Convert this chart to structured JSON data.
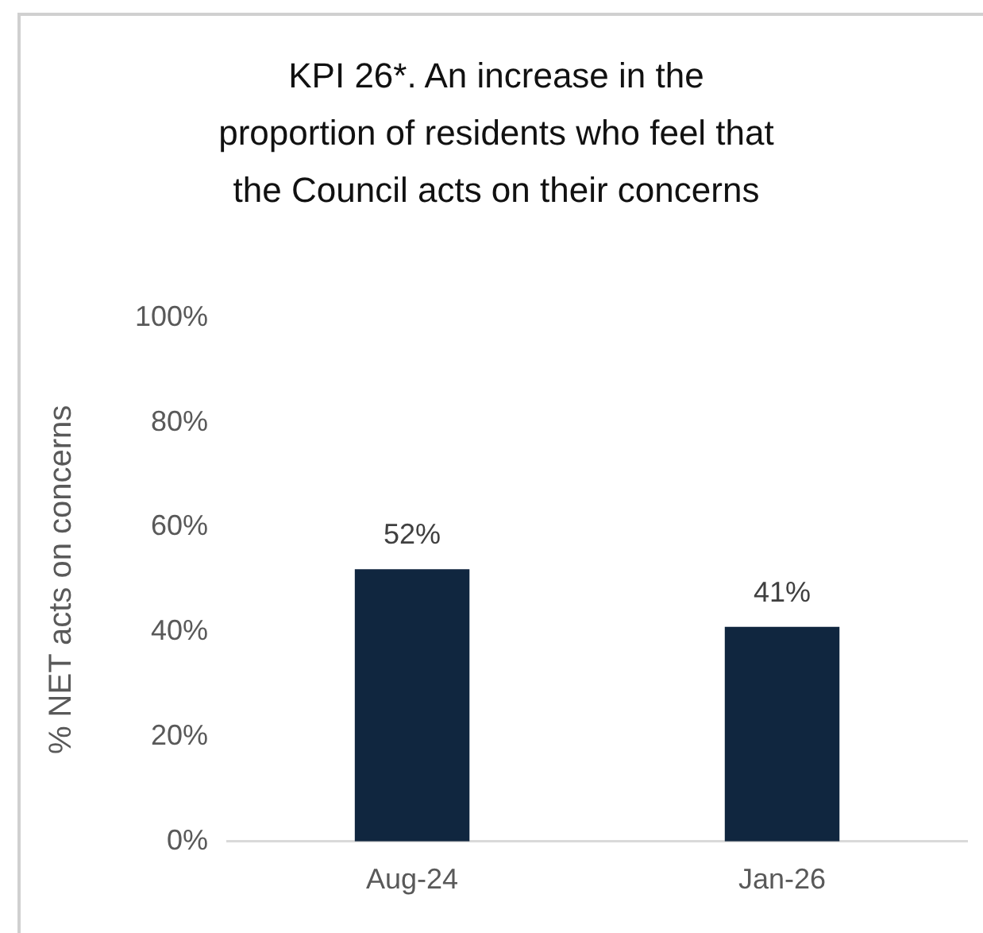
{
  "chart_data": {
    "type": "bar",
    "title": "KPI 26*. An increase in the proportion of residents who feel that the Council acts on their concerns",
    "ylabel": "% NET acts on concerns",
    "categories": [
      "Aug-24",
      "Jan-26"
    ],
    "values": [
      52,
      41
    ],
    "value_labels": [
      "52%",
      "41%"
    ],
    "color": "#10263f",
    "ylim": [
      0,
      100
    ],
    "yticks": [
      {
        "value": 0,
        "label": "0%"
      },
      {
        "value": 20,
        "label": "20%"
      },
      {
        "value": 40,
        "label": "40%"
      },
      {
        "value": 60,
        "label": "60%"
      },
      {
        "value": 80,
        "label": "80%"
      },
      {
        "value": 100,
        "label": "100%"
      }
    ],
    "grid": false,
    "legend": false
  }
}
